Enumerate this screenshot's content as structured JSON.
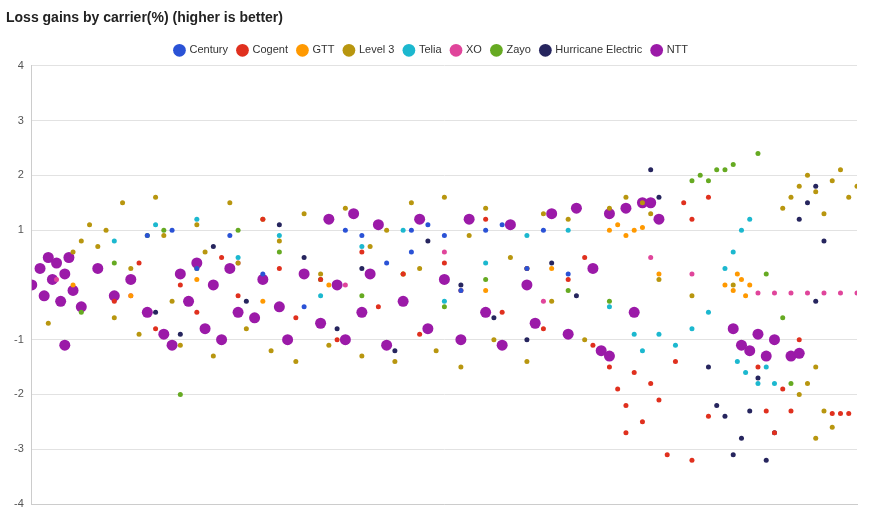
{
  "chart_data": {
    "type": "scatter",
    "title": "Loss gains by carrier(%) (higher is better)",
    "xlim": [
      0,
      100
    ],
    "ylim": [
      -4,
      4
    ],
    "yticks": [
      -4,
      -3,
      -2,
      -1,
      1,
      2,
      3,
      4
    ],
    "grid": true,
    "legend": "top",
    "tick_labels": "y",
    "marker": "circle",
    "series": [
      {
        "name": "Century",
        "color": "#2a52d6",
        "x": [
          14,
          17,
          20,
          24,
          28,
          33,
          38,
          40,
          43,
          46,
          48,
          50,
          52,
          55,
          57,
          60,
          62,
          65,
          46
        ],
        "values": [
          0.9,
          1.0,
          0.3,
          0.9,
          0.2,
          -0.4,
          1.0,
          0.9,
          0.4,
          1.0,
          1.1,
          0.9,
          -0.1,
          1.0,
          1.1,
          0.3,
          1.0,
          0.2,
          0.6
        ]
      },
      {
        "name": "Cogent",
        "color": "#e0301e",
        "x": [
          10,
          13,
          15,
          18,
          20,
          23,
          25,
          28,
          30,
          32,
          35,
          37,
          40,
          42,
          45,
          47,
          50,
          52,
          55,
          57,
          60,
          62,
          65,
          67,
          68,
          70,
          71,
          72,
          73,
          74,
          75,
          76,
          77,
          78,
          72,
          80,
          82,
          79,
          80,
          82,
          88,
          89,
          90,
          91,
          92,
          93,
          97,
          98,
          99
        ],
        "values": [
          -0.3,
          0.4,
          -0.8,
          0.0,
          -0.5,
          0.5,
          -0.2,
          1.2,
          0.3,
          -0.6,
          0.1,
          -1.0,
          0.6,
          -0.4,
          0.2,
          -0.9,
          0.4,
          -0.1,
          1.2,
          -0.5,
          0.3,
          -0.8,
          0.1,
          0.5,
          -1.1,
          -1.5,
          -1.9,
          -2.2,
          -1.6,
          -2.5,
          -1.8,
          -2.1,
          -3.1,
          -1.4,
          -2.7,
          -3.2,
          -2.4,
          1.5,
          1.2,
          1.6,
          -1.5,
          -2.3,
          -2.7,
          -1.9,
          -2.3,
          -1.0,
          -2.35,
          -2.35,
          -2.35
        ]
      },
      {
        "name": "GTT",
        "color": "#ff9900",
        "x": [
          5,
          12,
          20,
          28,
          36,
          45,
          55,
          63,
          70,
          71,
          72,
          73,
          74,
          76,
          84,
          85,
          86,
          86.5,
          87,
          85.5
        ],
        "values": [
          0.0,
          -0.2,
          0.1,
          -0.3,
          0.0,
          0.2,
          -0.1,
          0.3,
          1.0,
          1.1,
          0.9,
          1.0,
          1.05,
          0.2,
          0.0,
          -0.1,
          0.1,
          -0.2,
          0.0,
          0.2
        ]
      },
      {
        "name": "Level 3",
        "color": "#b8960f",
        "x": [
          2,
          5,
          6,
          7,
          8,
          9,
          10,
          11,
          12,
          13,
          15,
          16,
          17,
          18,
          20,
          21,
          22,
          24,
          25,
          26,
          28,
          29,
          30,
          32,
          33,
          35,
          36,
          38,
          40,
          41,
          43,
          44,
          46,
          47,
          49,
          50,
          52,
          53,
          55,
          56,
          58,
          60,
          62,
          63,
          65,
          67,
          70,
          72,
          74,
          75,
          76,
          80,
          85,
          91,
          92,
          93,
          94,
          95,
          96,
          97,
          98,
          99,
          100,
          95,
          94,
          96,
          97,
          95,
          93
        ],
        "values": [
          -0.7,
          0.6,
          0.8,
          1.1,
          0.7,
          1.0,
          -0.6,
          1.5,
          0.3,
          -0.9,
          1.6,
          0.9,
          -0.3,
          -1.1,
          1.1,
          0.6,
          -1.3,
          1.5,
          0.4,
          -0.8,
          1.2,
          -1.2,
          0.8,
          -1.4,
          1.3,
          0.2,
          -1.1,
          1.4,
          -1.3,
          0.7,
          1.0,
          -1.4,
          1.5,
          0.3,
          -1.2,
          1.6,
          -1.5,
          0.9,
          1.4,
          -1.0,
          0.5,
          -1.4,
          1.3,
          -0.3,
          1.2,
          -1.0,
          1.4,
          1.6,
          1.5,
          1.3,
          0.1,
          -0.2,
          0.0,
          1.4,
          1.6,
          1.8,
          2.0,
          1.7,
          1.3,
          1.9,
          2.1,
          1.6,
          1.8,
          -1.5,
          -1.8,
          -2.3,
          -2.6,
          -2.8,
          -2.0
        ]
      },
      {
        "name": "Telia",
        "color": "#1cb8cf",
        "x": [
          10,
          15,
          20,
          25,
          30,
          35,
          40,
          45,
          50,
          55,
          60,
          65,
          70,
          73,
          74,
          76,
          78,
          80,
          82,
          84,
          85,
          86,
          87,
          85.5,
          86.5,
          88,
          89,
          90
        ],
        "values": [
          0.8,
          1.1,
          1.2,
          0.5,
          0.9,
          -0.2,
          0.7,
          1.0,
          -0.3,
          0.4,
          0.9,
          1.0,
          -0.4,
          -0.9,
          -1.2,
          -0.9,
          -1.1,
          -0.8,
          -0.5,
          0.3,
          0.6,
          1.0,
          1.2,
          -1.4,
          -1.6,
          -1.8,
          -1.5,
          -1.8
        ]
      },
      {
        "name": "XO",
        "color": "#e0459b",
        "x": [
          3,
          12,
          25,
          38,
          50,
          62,
          75,
          80,
          88,
          90,
          92,
          94,
          96,
          98,
          100
        ],
        "values": [
          0.1,
          -0.2,
          0.4,
          0.0,
          0.6,
          -0.3,
          0.5,
          0.2,
          -0.15,
          -0.15,
          -0.15,
          -0.15,
          -0.15,
          -0.15,
          -0.15
        ]
      },
      {
        "name": "Zayo",
        "color": "#66aa22",
        "x": [
          6,
          10,
          14,
          16,
          20,
          25,
          30,
          35,
          40,
          45,
          50,
          55,
          60,
          65,
          70,
          18,
          80,
          81,
          82,
          83,
          84,
          85,
          88,
          92,
          91,
          89
        ],
        "values": [
          -0.5,
          0.4,
          0.9,
          1.0,
          0.3,
          1.0,
          0.6,
          0.1,
          -0.2,
          0.2,
          -0.4,
          0.1,
          0.3,
          -0.1,
          -0.3,
          -2.0,
          1.9,
          2.0,
          1.9,
          2.1,
          2.1,
          2.2,
          2.4,
          -1.8,
          -0.6,
          0.2
        ]
      },
      {
        "name": "Hurricane Electric",
        "color": "#26255e",
        "x": [
          15,
          18,
          22,
          26,
          30,
          33,
          37,
          40,
          44,
          48,
          52,
          56,
          60,
          63,
          66,
          75,
          76,
          82,
          83,
          84,
          85,
          86,
          87,
          88,
          89,
          90,
          93,
          94,
          95,
          96,
          95
        ],
        "values": [
          -0.5,
          -0.9,
          0.7,
          -0.3,
          1.1,
          0.5,
          -0.8,
          0.3,
          -1.2,
          0.8,
          0.0,
          -0.6,
          -1.0,
          0.4,
          -0.2,
          2.1,
          1.6,
          -1.5,
          -2.2,
          -2.4,
          -3.1,
          -2.8,
          -2.3,
          -1.7,
          -3.2,
          -2.7,
          1.2,
          1.5,
          1.8,
          0.8,
          -0.3
        ]
      },
      {
        "name": "NTT",
        "color": "#9b1aa8",
        "x": [
          0,
          1,
          1.5,
          2,
          2.5,
          3,
          3.5,
          4,
          4.5,
          5,
          6,
          4,
          8,
          10,
          12,
          14,
          16,
          17,
          18,
          19,
          20,
          21,
          22,
          23,
          24,
          25,
          27,
          28,
          30,
          31,
          33,
          35,
          36,
          37,
          38,
          39,
          40,
          41,
          42,
          43,
          45,
          47,
          48,
          50,
          52,
          53,
          55,
          57,
          58,
          60,
          61,
          63,
          65,
          66,
          68,
          69,
          70,
          72,
          73,
          74,
          75,
          76,
          85,
          86,
          87,
          88,
          89,
          90,
          92,
          93,
          70
        ],
        "values": [
          0.0,
          0.3,
          -0.2,
          0.5,
          0.1,
          0.4,
          -0.3,
          0.2,
          0.5,
          -0.1,
          -0.4,
          -1.1,
          0.3,
          -0.2,
          0.1,
          -0.5,
          -0.9,
          -1.1,
          0.2,
          -0.3,
          0.4,
          -0.8,
          0.0,
          -1.0,
          0.3,
          -0.5,
          -0.6,
          0.1,
          -0.4,
          -1.0,
          0.2,
          -0.7,
          1.2,
          0.0,
          -1.0,
          1.3,
          -0.5,
          0.2,
          1.1,
          -1.1,
          -0.3,
          1.2,
          -0.8,
          0.1,
          -1.0,
          1.2,
          -0.5,
          -1.1,
          1.1,
          0.0,
          -0.7,
          1.3,
          -0.9,
          1.4,
          0.3,
          -1.2,
          1.3,
          1.4,
          -0.5,
          1.5,
          1.5,
          1.2,
          -0.8,
          -1.1,
          -1.2,
          -0.9,
          -1.3,
          -1.0,
          -1.3,
          -1.25,
          -1.3
        ]
      }
    ]
  }
}
